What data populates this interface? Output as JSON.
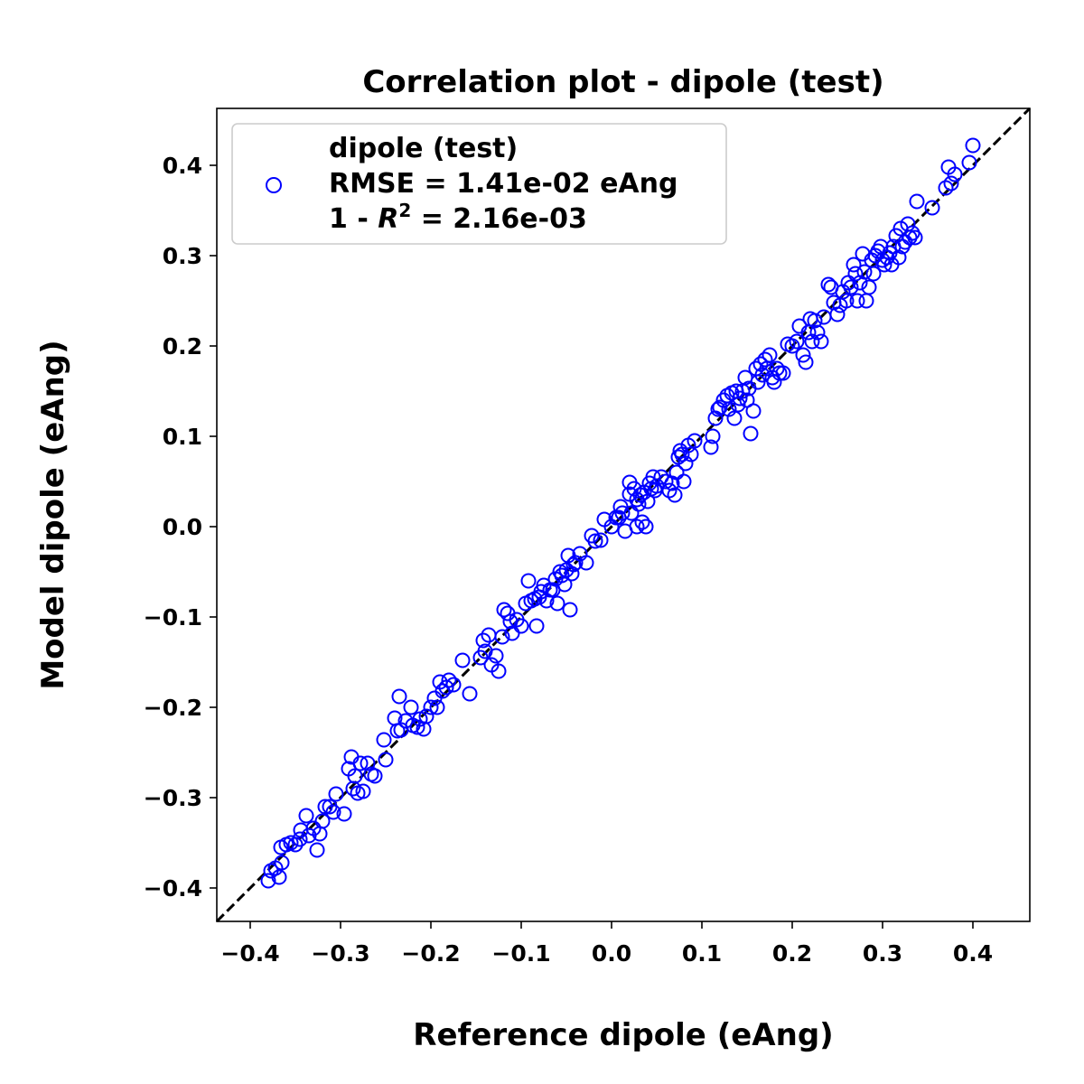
{
  "chart_data": {
    "type": "scatter",
    "title": "Correlation plot - dipole (test)",
    "xlabel": "Reference dipole (eAng)",
    "ylabel": "Model dipole (eAng)",
    "xlim": [
      -0.437,
      0.463
    ],
    "ylim": [
      -0.437,
      0.463
    ],
    "xticks": [
      -0.4,
      -0.3,
      -0.2,
      -0.1,
      0.0,
      0.1,
      0.2,
      0.3,
      0.4
    ],
    "yticks": [
      -0.4,
      -0.3,
      -0.2,
      -0.1,
      0.0,
      0.1,
      0.2,
      0.3,
      0.4
    ],
    "xtick_labels": [
      "−0.4",
      "−0.3",
      "−0.2",
      "−0.1",
      "0.0",
      "0.1",
      "0.2",
      "0.3",
      "0.4"
    ],
    "ytick_labels": [
      "−0.4",
      "−0.3",
      "−0.2",
      "−0.1",
      "0.0",
      "0.1",
      "0.2",
      "0.3",
      "0.4"
    ],
    "grid": false,
    "legend": {
      "placement": "upper-left",
      "series_name": "dipole (test)",
      "line1": "RMSE = 1.41e-02 eAng",
      "line2_prefix": "1 - ",
      "line2_R": "R",
      "line2_exp": "2",
      "line2_suffix": " = 2.16e-03"
    },
    "reference_line": {
      "style": "dashed",
      "color": "#000000",
      "from": [
        -0.437,
        -0.437
      ],
      "to": [
        0.463,
        0.463
      ]
    },
    "marker": {
      "shape": "open-circle",
      "color": "#0000ff"
    },
    "series": [
      {
        "name": "dipole (test)",
        "color": "#0000ff",
        "points": [
          [
            -0.38,
            -0.392
          ],
          [
            -0.377,
            -0.381
          ],
          [
            -0.372,
            -0.378
          ],
          [
            -0.368,
            -0.388
          ],
          [
            -0.365,
            -0.372
          ],
          [
            -0.366,
            -0.355
          ],
          [
            -0.36,
            -0.352
          ],
          [
            -0.355,
            -0.35
          ],
          [
            -0.35,
            -0.352
          ],
          [
            -0.345,
            -0.346
          ],
          [
            -0.344,
            -0.336
          ],
          [
            -0.338,
            -0.32
          ],
          [
            -0.335,
            -0.342
          ],
          [
            -0.33,
            -0.334
          ],
          [
            -0.326,
            -0.358
          ],
          [
            -0.323,
            -0.34
          ],
          [
            -0.32,
            -0.326
          ],
          [
            -0.317,
            -0.31
          ],
          [
            -0.312,
            -0.31
          ],
          [
            -0.308,
            -0.316
          ],
          [
            -0.305,
            -0.296
          ],
          [
            -0.296,
            -0.318
          ],
          [
            -0.291,
            -0.268
          ],
          [
            -0.288,
            -0.255
          ],
          [
            -0.286,
            -0.29
          ],
          [
            -0.284,
            -0.276
          ],
          [
            -0.281,
            -0.295
          ],
          [
            -0.278,
            -0.262
          ],
          [
            -0.275,
            -0.293
          ],
          [
            -0.27,
            -0.262
          ],
          [
            -0.266,
            -0.274
          ],
          [
            -0.262,
            -0.276
          ],
          [
            -0.252,
            -0.236
          ],
          [
            -0.25,
            -0.258
          ],
          [
            -0.24,
            -0.212
          ],
          [
            -0.237,
            -0.226
          ],
          [
            -0.235,
            -0.188
          ],
          [
            -0.233,
            -0.225
          ],
          [
            -0.228,
            -0.215
          ],
          [
            -0.222,
            -0.2
          ],
          [
            -0.22,
            -0.22
          ],
          [
            -0.215,
            -0.222
          ],
          [
            -0.212,
            -0.213
          ],
          [
            -0.208,
            -0.224
          ],
          [
            -0.205,
            -0.21
          ],
          [
            -0.2,
            -0.2
          ],
          [
            -0.196,
            -0.19
          ],
          [
            -0.193,
            -0.2
          ],
          [
            -0.19,
            -0.172
          ],
          [
            -0.187,
            -0.182
          ],
          [
            -0.183,
            -0.178
          ],
          [
            -0.18,
            -0.17
          ],
          [
            -0.175,
            -0.175
          ],
          [
            -0.165,
            -0.148
          ],
          [
            -0.157,
            -0.185
          ],
          [
            -0.145,
            -0.145
          ],
          [
            -0.142,
            -0.126
          ],
          [
            -0.14,
            -0.138
          ],
          [
            -0.136,
            -0.12
          ],
          [
            -0.133,
            -0.153
          ],
          [
            -0.128,
            -0.143
          ],
          [
            -0.125,
            -0.16
          ],
          [
            -0.121,
            -0.122
          ],
          [
            -0.119,
            -0.092
          ],
          [
            -0.115,
            -0.096
          ],
          [
            -0.112,
            -0.105
          ],
          [
            -0.11,
            -0.118
          ],
          [
            -0.105,
            -0.103
          ],
          [
            -0.1,
            -0.11
          ],
          [
            -0.095,
            -0.085
          ],
          [
            -0.092,
            -0.06
          ],
          [
            -0.089,
            -0.082
          ],
          [
            -0.085,
            -0.08
          ],
          [
            -0.083,
            -0.11
          ],
          [
            -0.08,
            -0.078
          ],
          [
            -0.078,
            -0.072
          ],
          [
            -0.075,
            -0.065
          ],
          [
            -0.072,
            -0.082
          ],
          [
            -0.068,
            -0.07
          ],
          [
            -0.065,
            -0.07
          ],
          [
            -0.062,
            -0.058
          ],
          [
            -0.06,
            -0.085
          ],
          [
            -0.057,
            -0.05
          ],
          [
            -0.055,
            -0.054
          ],
          [
            -0.052,
            -0.064
          ],
          [
            -0.05,
            -0.048
          ],
          [
            -0.048,
            -0.032
          ],
          [
            -0.046,
            -0.092
          ],
          [
            -0.044,
            -0.052
          ],
          [
            -0.042,
            -0.042
          ],
          [
            -0.04,
            -0.04
          ],
          [
            -0.035,
            -0.03
          ],
          [
            -0.028,
            -0.04
          ],
          [
            -0.022,
            -0.01
          ],
          [
            -0.018,
            -0.016
          ],
          [
            -0.012,
            -0.015
          ],
          [
            -0.008,
            0.008
          ],
          [
            0.0,
            0.0
          ],
          [
            0.005,
            0.01
          ],
          [
            0.008,
            0.01
          ],
          [
            0.01,
            0.022
          ],
          [
            0.012,
            0.015
          ],
          [
            0.015,
            -0.005
          ],
          [
            0.02,
            0.049
          ],
          [
            0.02,
            0.036
          ],
          [
            0.022,
            0.015
          ],
          [
            0.025,
            0.042
          ],
          [
            0.028,
            0.03
          ],
          [
            0.028,
            0.0
          ],
          [
            0.03,
            0.025
          ],
          [
            0.032,
            0.035
          ],
          [
            0.034,
            0.005
          ],
          [
            0.036,
            0.038
          ],
          [
            0.038,
            0.0
          ],
          [
            0.04,
            0.028
          ],
          [
            0.042,
            0.048
          ],
          [
            0.044,
            0.042
          ],
          [
            0.046,
            0.055
          ],
          [
            0.048,
            0.04
          ],
          [
            0.05,
            0.045
          ],
          [
            0.055,
            0.055
          ],
          [
            0.06,
            0.05
          ],
          [
            0.064,
            0.04
          ],
          [
            0.067,
            0.048
          ],
          [
            0.07,
            0.035
          ],
          [
            0.072,
            0.06
          ],
          [
            0.074,
            0.077
          ],
          [
            0.076,
            0.084
          ],
          [
            0.078,
            0.08
          ],
          [
            0.08,
            0.05
          ],
          [
            0.082,
            0.07
          ],
          [
            0.085,
            0.09
          ],
          [
            0.088,
            0.08
          ],
          [
            0.092,
            0.095
          ],
          [
            0.11,
            0.088
          ],
          [
            0.112,
            0.1
          ],
          [
            0.115,
            0.12
          ],
          [
            0.118,
            0.13
          ],
          [
            0.12,
            0.132
          ],
          [
            0.124,
            0.14
          ],
          [
            0.128,
            0.145
          ],
          [
            0.13,
            0.13
          ],
          [
            0.133,
            0.148
          ],
          [
            0.136,
            0.12
          ],
          [
            0.138,
            0.15
          ],
          [
            0.14,
            0.135
          ],
          [
            0.142,
            0.142
          ],
          [
            0.145,
            0.15
          ],
          [
            0.148,
            0.165
          ],
          [
            0.15,
            0.14
          ],
          [
            0.152,
            0.153
          ],
          [
            0.154,
            0.103
          ],
          [
            0.157,
            0.128
          ],
          [
            0.16,
            0.175
          ],
          [
            0.162,
            0.16
          ],
          [
            0.165,
            0.18
          ],
          [
            0.167,
            0.168
          ],
          [
            0.17,
            0.185
          ],
          [
            0.172,
            0.175
          ],
          [
            0.175,
            0.19
          ],
          [
            0.178,
            0.165
          ],
          [
            0.18,
            0.16
          ],
          [
            0.183,
            0.175
          ],
          [
            0.186,
            0.17
          ],
          [
            0.19,
            0.17
          ],
          [
            0.195,
            0.202
          ],
          [
            0.2,
            0.2
          ],
          [
            0.205,
            0.205
          ],
          [
            0.208,
            0.222
          ],
          [
            0.212,
            0.19
          ],
          [
            0.215,
            0.182
          ],
          [
            0.218,
            0.215
          ],
          [
            0.22,
            0.23
          ],
          [
            0.222,
            0.205
          ],
          [
            0.225,
            0.228
          ],
          [
            0.228,
            0.215
          ],
          [
            0.232,
            0.205
          ],
          [
            0.235,
            0.232
          ],
          [
            0.24,
            0.268
          ],
          [
            0.243,
            0.265
          ],
          [
            0.246,
            0.248
          ],
          [
            0.25,
            0.235
          ],
          [
            0.253,
            0.245
          ],
          [
            0.256,
            0.26
          ],
          [
            0.26,
            0.25
          ],
          [
            0.262,
            0.27
          ],
          [
            0.265,
            0.265
          ],
          [
            0.268,
            0.29
          ],
          [
            0.27,
            0.28
          ],
          [
            0.272,
            0.25
          ],
          [
            0.275,
            0.27
          ],
          [
            0.278,
            0.302
          ],
          [
            0.28,
            0.282
          ],
          [
            0.282,
            0.25
          ],
          [
            0.285,
            0.265
          ],
          [
            0.288,
            0.295
          ],
          [
            0.29,
            0.28
          ],
          [
            0.292,
            0.3
          ],
          [
            0.295,
            0.305
          ],
          [
            0.298,
            0.31
          ],
          [
            0.3,
            0.295
          ],
          [
            0.302,
            0.29
          ],
          [
            0.305,
            0.298
          ],
          [
            0.308,
            0.303
          ],
          [
            0.31,
            0.29
          ],
          [
            0.312,
            0.31
          ],
          [
            0.315,
            0.322
          ],
          [
            0.318,
            0.298
          ],
          [
            0.32,
            0.33
          ],
          [
            0.322,
            0.31
          ],
          [
            0.325,
            0.315
          ],
          [
            0.328,
            0.335
          ],
          [
            0.33,
            0.32
          ],
          [
            0.333,
            0.325
          ],
          [
            0.336,
            0.32
          ],
          [
            0.338,
            0.36
          ],
          [
            0.355,
            0.353
          ],
          [
            0.37,
            0.375
          ],
          [
            0.373,
            0.398
          ],
          [
            0.376,
            0.38
          ],
          [
            0.38,
            0.39
          ],
          [
            0.396,
            0.403
          ],
          [
            0.4,
            0.422
          ]
        ]
      }
    ]
  }
}
